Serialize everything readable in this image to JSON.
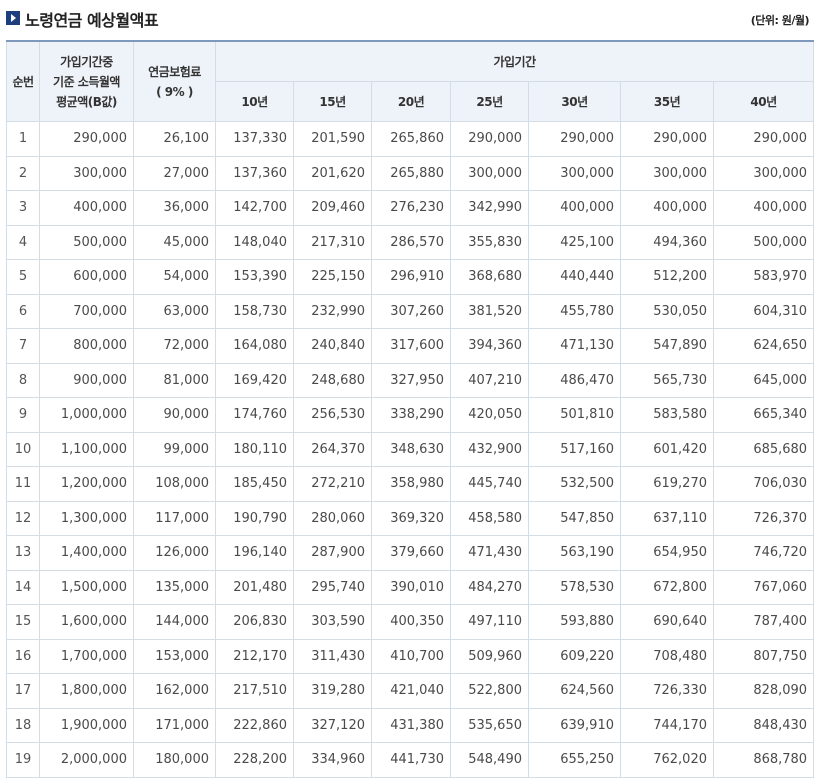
{
  "header": {
    "title": "노령연금 예상월액표",
    "unit": "(단위: 원/월)"
  },
  "columns": {
    "no": "순번",
    "income_line1": "가입기간중",
    "income_line2": "기준 소득월액",
    "income_line3": "평균액(B값)",
    "premium_line1": "연금보험료",
    "premium_line2": "( 9% )",
    "period": "가입기간",
    "years": [
      "10년",
      "15년",
      "20년",
      "25년",
      "30년",
      "35년",
      "40년"
    ]
  },
  "rows": [
    [
      "1",
      "290,000",
      "26,100",
      "137,330",
      "201,590",
      "265,860",
      "290,000",
      "290,000",
      "290,000",
      "290,000"
    ],
    [
      "2",
      "300,000",
      "27,000",
      "137,360",
      "201,620",
      "265,880",
      "300,000",
      "300,000",
      "300,000",
      "300,000"
    ],
    [
      "3",
      "400,000",
      "36,000",
      "142,700",
      "209,460",
      "276,230",
      "342,990",
      "400,000",
      "400,000",
      "400,000"
    ],
    [
      "4",
      "500,000",
      "45,000",
      "148,040",
      "217,310",
      "286,570",
      "355,830",
      "425,100",
      "494,360",
      "500,000"
    ],
    [
      "5",
      "600,000",
      "54,000",
      "153,390",
      "225,150",
      "296,910",
      "368,680",
      "440,440",
      "512,200",
      "583,970"
    ],
    [
      "6",
      "700,000",
      "63,000",
      "158,730",
      "232,990",
      "307,260",
      "381,520",
      "455,780",
      "530,050",
      "604,310"
    ],
    [
      "7",
      "800,000",
      "72,000",
      "164,080",
      "240,840",
      "317,600",
      "394,360",
      "471,130",
      "547,890",
      "624,650"
    ],
    [
      "8",
      "900,000",
      "81,000",
      "169,420",
      "248,680",
      "327,950",
      "407,210",
      "486,470",
      "565,730",
      "645,000"
    ],
    [
      "9",
      "1,000,000",
      "90,000",
      "174,760",
      "256,530",
      "338,290",
      "420,050",
      "501,810",
      "583,580",
      "665,340"
    ],
    [
      "10",
      "1,100,000",
      "99,000",
      "180,110",
      "264,370",
      "348,630",
      "432,900",
      "517,160",
      "601,420",
      "685,680"
    ],
    [
      "11",
      "1,200,000",
      "108,000",
      "185,450",
      "272,210",
      "358,980",
      "445,740",
      "532,500",
      "619,270",
      "706,030"
    ],
    [
      "12",
      "1,300,000",
      "117,000",
      "190,790",
      "280,060",
      "369,320",
      "458,580",
      "547,850",
      "637,110",
      "726,370"
    ],
    [
      "13",
      "1,400,000",
      "126,000",
      "196,140",
      "287,900",
      "379,660",
      "471,430",
      "563,190",
      "654,950",
      "746,720"
    ],
    [
      "14",
      "1,500,000",
      "135,000",
      "201,480",
      "295,740",
      "390,010",
      "484,270",
      "578,530",
      "672,800",
      "767,060"
    ],
    [
      "15",
      "1,600,000",
      "144,000",
      "206,830",
      "303,590",
      "400,350",
      "497,110",
      "593,880",
      "690,640",
      "787,400"
    ],
    [
      "16",
      "1,700,000",
      "153,000",
      "212,170",
      "311,430",
      "410,700",
      "509,960",
      "609,220",
      "708,480",
      "807,750"
    ],
    [
      "17",
      "1,800,000",
      "162,000",
      "217,510",
      "319,280",
      "421,040",
      "522,800",
      "624,560",
      "726,330",
      "828,090"
    ],
    [
      "18",
      "1,900,000",
      "171,000",
      "222,860",
      "327,120",
      "431,380",
      "535,650",
      "639,910",
      "744,170",
      "848,430"
    ],
    [
      "19",
      "2,000,000",
      "180,000",
      "228,200",
      "334,960",
      "441,730",
      "548,490",
      "655,250",
      "762,020",
      "868,780"
    ]
  ]
}
